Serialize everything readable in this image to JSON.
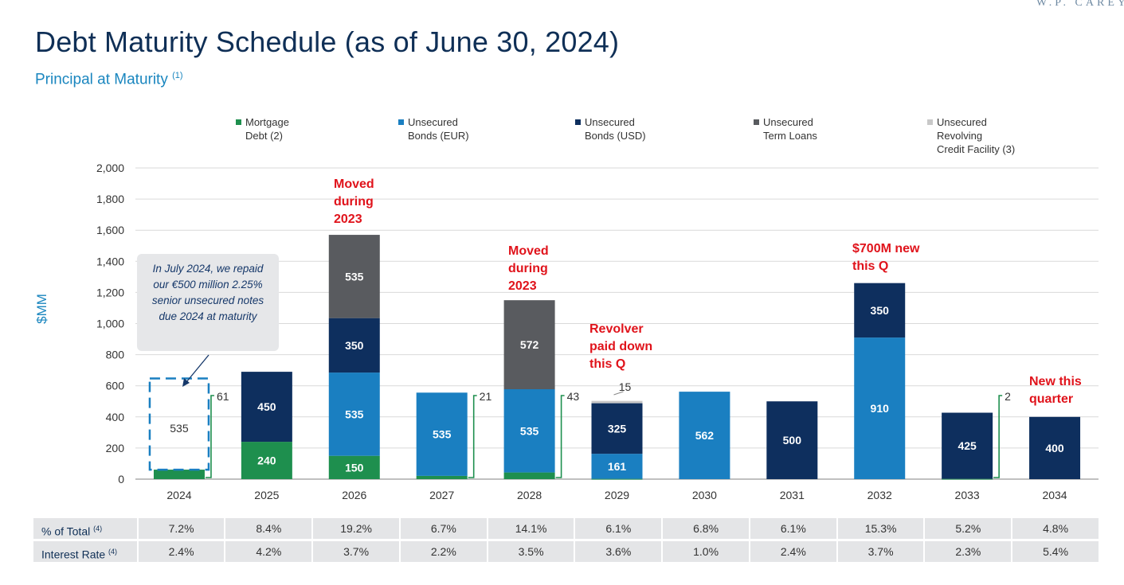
{
  "logo": "W.P. CAREY",
  "header": {
    "title": "Debt Maturity Schedule (as of June 30, 2024)",
    "subtitle": "Principal at Maturity",
    "subtitle_note": "(1)"
  },
  "callout": {
    "text": "In July 2024, we repaid our €500 million 2.25% senior unsecured notes due 2024 at maturity"
  },
  "colors": {
    "mortgage": "#1e8f4e",
    "eur": "#1a7fc1",
    "usd": "#0e2f5e",
    "term": "#595b5f",
    "revolver": "#c8c8c8",
    "annotation": "#e0131b",
    "axis_label": "#1a86bf"
  },
  "chart_data": {
    "type": "bar",
    "stacked": true,
    "title": "Debt Maturity Schedule (as of June 30, 2024)",
    "subtitle": "Principal at Maturity (1)",
    "ylabel": "$MM",
    "ylim": [
      0,
      2000
    ],
    "yticks": [
      "0",
      "200",
      "400",
      "600",
      "800",
      "1,000",
      "1,200",
      "1,400",
      "1,600",
      "1,800",
      "2,000"
    ],
    "ytick_values": [
      0,
      200,
      400,
      600,
      800,
      1000,
      1200,
      1400,
      1600,
      1800,
      2000
    ],
    "grid": true,
    "legend_position": "top",
    "categories": [
      "2024",
      "2025",
      "2026",
      "2027",
      "2028",
      "2029",
      "2030",
      "2031",
      "2032",
      "2033",
      "2034"
    ],
    "series": [
      {
        "name": "Mortgage Debt",
        "note": "(2)",
        "legend": [
          "Mortgage",
          "Debt (2)"
        ],
        "color": "#1e8f4e",
        "values": [
          61,
          240,
          150,
          21,
          43,
          2,
          0,
          0,
          0,
          2,
          0
        ]
      },
      {
        "name": "Unsecured Bonds (EUR)",
        "legend": [
          "Unsecured",
          "Bonds (EUR)"
        ],
        "color": "#1a7fc1",
        "values": [
          0,
          0,
          535,
          535,
          535,
          161,
          562,
          0,
          910,
          0,
          0
        ]
      },
      {
        "name": "Unsecured Bonds (USD)",
        "legend": [
          "Unsecured",
          "Bonds (USD)"
        ],
        "color": "#0e2f5e",
        "values": [
          0,
          450,
          350,
          0,
          0,
          325,
          0,
          500,
          350,
          425,
          400
        ]
      },
      {
        "name": "Unsecured Term Loans",
        "legend": [
          "Unsecured",
          "Term Loans"
        ],
        "color": "#595b5f",
        "values": [
          0,
          0,
          535,
          0,
          572,
          0,
          0,
          0,
          0,
          0,
          0
        ]
      },
      {
        "name": "Unsecured Revolving Credit Facility",
        "note": "(3)",
        "legend": [
          "Unsecured",
          "Revolving",
          "Credit Facility (3)"
        ],
        "color": "#c8c8c8",
        "values": [
          0,
          0,
          0,
          0,
          0,
          15,
          0,
          0,
          0,
          0,
          0
        ]
      }
    ],
    "segment_labels": [
      [
        null,
        null,
        null,
        null,
        null
      ],
      [
        "240",
        null,
        "450",
        null,
        null
      ],
      [
        "150",
        "535",
        "350",
        "535",
        null
      ],
      [
        null,
        "535",
        null,
        null,
        null
      ],
      [
        null,
        "535",
        null,
        "572",
        null
      ],
      [
        null,
        "161",
        "325",
        null,
        null
      ],
      [
        null,
        "562",
        null,
        null,
        null
      ],
      [
        null,
        null,
        "500",
        null,
        null
      ],
      [
        null,
        "910",
        "350",
        null,
        null
      ],
      [
        null,
        null,
        "425",
        null,
        null
      ],
      [
        null,
        null,
        "400",
        null,
        null
      ]
    ],
    "dashed_box": {
      "category": "2024",
      "value": 535,
      "label": "535",
      "note": "repaid in July 2024"
    },
    "bracket_labels": [
      {
        "category": "2024",
        "value": 61,
        "label": "61"
      },
      {
        "category": "2027",
        "value": 21,
        "label": "21"
      },
      {
        "category": "2028",
        "value": 43,
        "label": "43"
      },
      {
        "category": "2033",
        "value": 2,
        "label": "2"
      }
    ],
    "top_labels": [
      {
        "category": "2029",
        "label": "15"
      }
    ],
    "annotations": [
      {
        "category": "2026",
        "lines": [
          "Moved",
          "during",
          "2023"
        ]
      },
      {
        "category": "2028",
        "lines": [
          "Moved",
          "during",
          "2023"
        ]
      },
      {
        "category": "2029",
        "lines": [
          "Revolver",
          "paid down",
          "this Q"
        ]
      },
      {
        "category": "2032",
        "lines": [
          "$700M new",
          "this Q"
        ]
      },
      {
        "category": "2034",
        "lines": [
          "New this",
          "quarter"
        ]
      }
    ]
  },
  "table": {
    "rows": [
      {
        "label": "% of Total",
        "note": "(4)",
        "values": [
          "7.2%",
          "8.4%",
          "19.2%",
          "6.7%",
          "14.1%",
          "6.1%",
          "6.8%",
          "6.1%",
          "15.3%",
          "5.2%",
          "4.8%"
        ]
      },
      {
        "label": "Interest Rate",
        "note": "(4)",
        "values": [
          "2.4%",
          "4.2%",
          "3.7%",
          "2.2%",
          "3.5%",
          "3.6%",
          "1.0%",
          "2.4%",
          "3.7%",
          "2.3%",
          "5.4%"
        ]
      }
    ]
  }
}
